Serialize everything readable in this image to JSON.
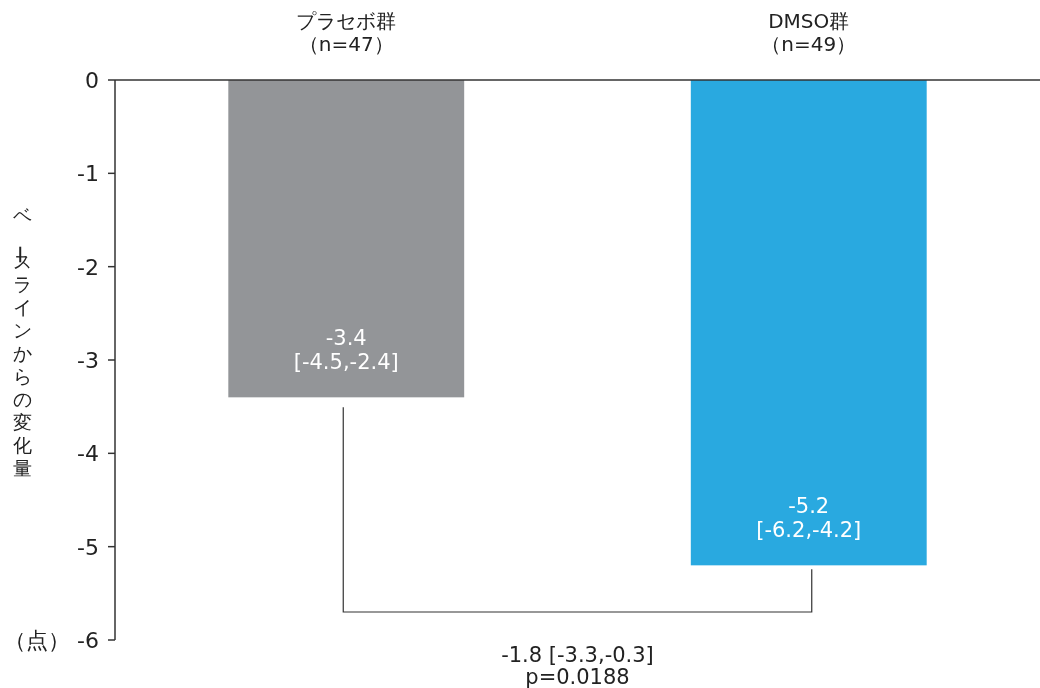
{
  "chart_data": {
    "type": "bar",
    "categories": [
      "プラセボ群（n=47）",
      "DMSO群（n=49）"
    ],
    "values": [
      -3.4,
      -5.2
    ],
    "colors": [
      "#939598",
      "#29a9e0"
    ],
    "value_labels": [
      "-3.4\n[-4.5,-2.4]",
      "-5.2\n[-6.2,-4.2]"
    ],
    "ylabel": "ベースラインからの変化量",
    "ylim": [
      -6,
      0
    ],
    "yticks": [
      0,
      -1,
      -2,
      -3,
      -4,
      -5,
      {
        "value": -6,
        "label": "（点） -6"
      }
    ],
    "annotations": [
      "-1.8 [-3.3,-0.3]",
      "p=0.0188"
    ],
    "grid": false
  }
}
